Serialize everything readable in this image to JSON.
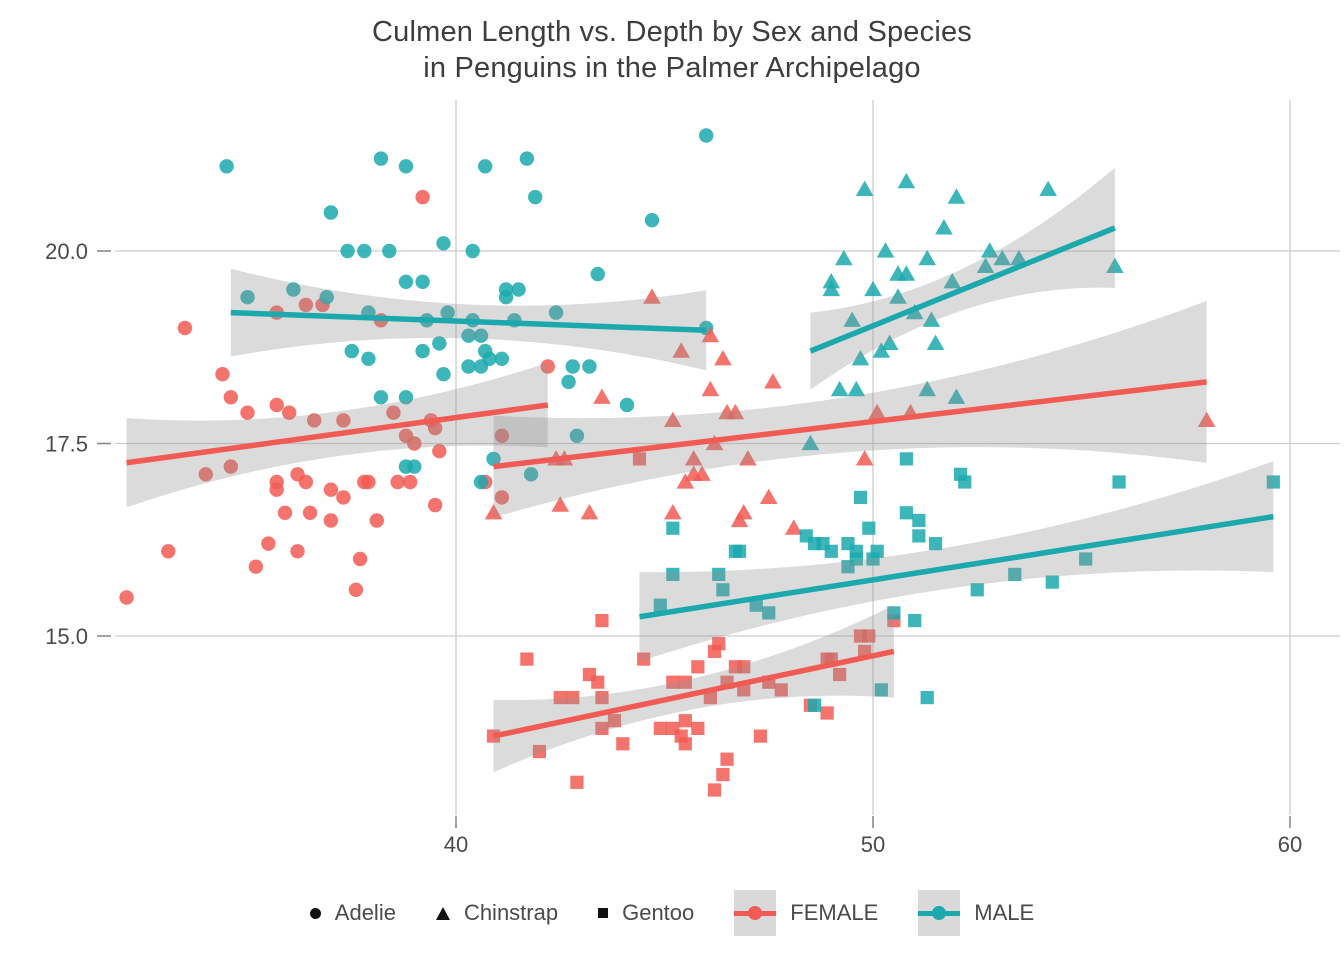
{
  "title": {
    "line1": "Culmen Length vs. Depth by Sex and Species",
    "line2": "in Penguins in the Palmer Archipelago"
  },
  "colors": {
    "female": "#f25b53",
    "male": "#1ba9ae",
    "band": "#8f8f8f",
    "grid": "#cdcdcd",
    "tick": "#8a8a8a",
    "tick_text": "#4a4a4a",
    "title_text": "#3d3d3d",
    "legend_key_bg": "#d9d9d9",
    "legend_marker": "#111111"
  },
  "axes": {
    "x_ticks": [
      {
        "value": 40,
        "label": "40"
      },
      {
        "value": 50,
        "label": "50"
      },
      {
        "value": 60,
        "label": "60"
      }
    ],
    "y_ticks": [
      {
        "value": 20.0,
        "label": "20.0"
      },
      {
        "value": 17.5,
        "label": "17.5"
      },
      {
        "value": 15.0,
        "label": "15.0"
      }
    ],
    "x_domain": [
      31.8,
      61.2
    ],
    "y_domain": [
      12.68,
      21.96
    ]
  },
  "legend": {
    "species": [
      {
        "label": "Adelie",
        "shape": "circle"
      },
      {
        "label": "Chinstrap",
        "shape": "triangle"
      },
      {
        "label": "Gentoo",
        "shape": "square"
      }
    ],
    "sex": [
      {
        "label": "FEMALE",
        "color": "#f25b53"
      },
      {
        "label": "MALE",
        "color": "#1ba9ae"
      }
    ]
  },
  "chart_data": {
    "type": "scatter",
    "title": "Culmen Length vs. Depth by Sex and Species in Penguins in the Palmer Archipelago",
    "xlabel": "",
    "ylabel": "",
    "xlim": [
      31.8,
      61.2
    ],
    "ylim": [
      12.68,
      21.96
    ],
    "grid": true,
    "legend_position": "bottom",
    "series": [
      {
        "name": "Adelie FEMALE",
        "species": "Adelie",
        "sex": "FEMALE",
        "shape": "circle",
        "color": "#f25b53",
        "points": [
          [
            32.1,
            15.5
          ],
          [
            33.1,
            16.1
          ],
          [
            33.5,
            19.0
          ],
          [
            34.0,
            17.1
          ],
          [
            34.4,
            18.4
          ],
          [
            34.6,
            17.2
          ],
          [
            34.6,
            18.1
          ],
          [
            35.0,
            17.9
          ],
          [
            35.2,
            15.9
          ],
          [
            35.5,
            16.2
          ],
          [
            35.7,
            16.9
          ],
          [
            35.7,
            17.0
          ],
          [
            35.7,
            18.0
          ],
          [
            35.7,
            19.2
          ],
          [
            35.9,
            16.6
          ],
          [
            36.0,
            17.9
          ],
          [
            36.2,
            16.1
          ],
          [
            36.2,
            17.1
          ],
          [
            36.4,
            17.0
          ],
          [
            36.4,
            19.3
          ],
          [
            36.5,
            16.6
          ],
          [
            36.6,
            17.8
          ],
          [
            36.8,
            19.3
          ],
          [
            37.0,
            16.5
          ],
          [
            37.0,
            16.9
          ],
          [
            37.3,
            16.8
          ],
          [
            37.3,
            17.8
          ],
          [
            37.6,
            15.6
          ],
          [
            37.7,
            16.0
          ],
          [
            37.8,
            17.0
          ],
          [
            37.9,
            17.0
          ],
          [
            38.1,
            16.5
          ],
          [
            38.2,
            19.1
          ],
          [
            38.5,
            17.9
          ],
          [
            38.6,
            17.0
          ],
          [
            38.8,
            17.6
          ],
          [
            38.9,
            17.0
          ],
          [
            39.0,
            17.5
          ],
          [
            39.2,
            20.7
          ],
          [
            39.4,
            17.8
          ],
          [
            39.5,
            16.7
          ],
          [
            39.5,
            17.7
          ],
          [
            39.6,
            17.4
          ],
          [
            40.7,
            17.0
          ],
          [
            41.1,
            16.8
          ],
          [
            41.1,
            17.6
          ],
          [
            42.2,
            18.5
          ]
        ],
        "regression": {
          "x1": 32.1,
          "y1": 17.25,
          "x2": 42.2,
          "y2": 18.0
        },
        "band_halfwidth": [
          0.58,
          0.29,
          0.55
        ]
      },
      {
        "name": "Adelie MALE",
        "species": "Adelie",
        "sex": "MALE",
        "shape": "circle",
        "color": "#1ba9ae",
        "points": [
          [
            34.5,
            21.1
          ],
          [
            35.0,
            19.4
          ],
          [
            36.1,
            19.5
          ],
          [
            36.9,
            19.4
          ],
          [
            37.0,
            20.5
          ],
          [
            37.4,
            20.0
          ],
          [
            37.5,
            18.7
          ],
          [
            37.8,
            20.0
          ],
          [
            37.9,
            18.6
          ],
          [
            37.9,
            19.2
          ],
          [
            38.2,
            18.1
          ],
          [
            38.2,
            21.2
          ],
          [
            38.4,
            20.0
          ],
          [
            38.8,
            17.2
          ],
          [
            38.8,
            18.1
          ],
          [
            38.8,
            19.6
          ],
          [
            38.8,
            21.1
          ],
          [
            39.0,
            17.2
          ],
          [
            39.2,
            18.7
          ],
          [
            39.2,
            19.6
          ],
          [
            39.3,
            19.1
          ],
          [
            39.6,
            18.8
          ],
          [
            39.7,
            18.4
          ],
          [
            39.7,
            20.1
          ],
          [
            39.8,
            19.2
          ],
          [
            40.3,
            18.5
          ],
          [
            40.3,
            18.9
          ],
          [
            40.4,
            19.1
          ],
          [
            40.4,
            20.0
          ],
          [
            40.6,
            17.0
          ],
          [
            40.6,
            18.5
          ],
          [
            40.6,
            18.9
          ],
          [
            40.7,
            18.7
          ],
          [
            40.7,
            21.1
          ],
          [
            40.8,
            18.6
          ],
          [
            40.9,
            17.3
          ],
          [
            41.1,
            18.6
          ],
          [
            41.2,
            19.4
          ],
          [
            41.2,
            19.5
          ],
          [
            41.4,
            19.1
          ],
          [
            41.5,
            19.5
          ],
          [
            41.7,
            21.2
          ],
          [
            41.8,
            17.1
          ],
          [
            41.9,
            20.7
          ],
          [
            42.4,
            19.2
          ],
          [
            42.7,
            18.3
          ],
          [
            42.8,
            18.5
          ],
          [
            42.9,
            17.6
          ],
          [
            43.2,
            18.5
          ],
          [
            43.4,
            19.7
          ],
          [
            44.1,
            18.0
          ],
          [
            44.7,
            20.4
          ],
          [
            46.0,
            19.0
          ],
          [
            46.0,
            21.5
          ]
        ],
        "regression": {
          "x1": 34.6,
          "y1": 19.2,
          "x2": 46.0,
          "y2": 18.97
        },
        "band_halfwidth": [
          0.57,
          0.22,
          0.52
        ]
      },
      {
        "name": "Chinstrap FEMALE",
        "species": "Chinstrap",
        "sex": "FEMALE",
        "shape": "triangle",
        "color": "#f25b53",
        "points": [
          [
            40.9,
            16.6
          ],
          [
            42.4,
            17.3
          ],
          [
            42.5,
            16.7
          ],
          [
            42.6,
            17.3
          ],
          [
            43.2,
            16.6
          ],
          [
            43.5,
            18.1
          ],
          [
            44.7,
            19.4
          ],
          [
            45.2,
            16.6
          ],
          [
            45.2,
            17.8
          ],
          [
            45.4,
            18.7
          ],
          [
            45.5,
            17.0
          ],
          [
            45.7,
            17.1
          ],
          [
            45.7,
            17.3
          ],
          [
            45.9,
            17.1
          ],
          [
            46.1,
            18.2
          ],
          [
            46.1,
            18.9
          ],
          [
            46.2,
            17.5
          ],
          [
            46.4,
            18.6
          ],
          [
            46.5,
            17.9
          ],
          [
            46.7,
            17.9
          ],
          [
            46.8,
            16.5
          ],
          [
            46.9,
            16.6
          ],
          [
            47.0,
            17.3
          ],
          [
            47.5,
            16.8
          ],
          [
            47.6,
            18.3
          ],
          [
            48.1,
            16.4
          ],
          [
            49.8,
            17.3
          ],
          [
            50.1,
            17.9
          ],
          [
            50.9,
            17.9
          ],
          [
            58.0,
            17.8
          ]
        ],
        "regression": {
          "x1": 40.9,
          "y1": 17.2,
          "x2": 58.0,
          "y2": 18.3
        },
        "band_halfwidth": [
          0.66,
          0.36,
          1.05
        ]
      },
      {
        "name": "Chinstrap MALE",
        "species": "Chinstrap",
        "sex": "MALE",
        "shape": "triangle",
        "color": "#1ba9ae",
        "points": [
          [
            48.5,
            17.5
          ],
          [
            49.0,
            19.5
          ],
          [
            49.0,
            19.6
          ],
          [
            49.2,
            18.2
          ],
          [
            49.3,
            19.9
          ],
          [
            49.5,
            19.1
          ],
          [
            49.6,
            18.2
          ],
          [
            49.7,
            18.6
          ],
          [
            49.8,
            20.8
          ],
          [
            50.0,
            19.5
          ],
          [
            50.2,
            18.7
          ],
          [
            50.3,
            20.0
          ],
          [
            50.4,
            18.8
          ],
          [
            50.6,
            19.4
          ],
          [
            50.6,
            19.7
          ],
          [
            50.8,
            19.7
          ],
          [
            50.8,
            20.9
          ],
          [
            51.0,
            19.2
          ],
          [
            51.3,
            18.2
          ],
          [
            51.3,
            19.9
          ],
          [
            51.4,
            19.1
          ],
          [
            51.5,
            18.8
          ],
          [
            51.7,
            20.3
          ],
          [
            51.9,
            19.6
          ],
          [
            52.0,
            18.1
          ],
          [
            52.0,
            20.7
          ],
          [
            52.7,
            19.8
          ],
          [
            52.8,
            20.0
          ],
          [
            53.1,
            19.9
          ],
          [
            53.5,
            19.9
          ],
          [
            54.2,
            20.8
          ],
          [
            55.8,
            19.8
          ]
        ],
        "regression": {
          "x1": 48.5,
          "y1": 18.7,
          "x2": 55.8,
          "y2": 20.3
        },
        "band_halfwidth": [
          0.5,
          0.27,
          0.78
        ]
      },
      {
        "name": "Gentoo FEMALE",
        "species": "Gentoo",
        "sex": "FEMALE",
        "shape": "square",
        "color": "#f25b53",
        "points": [
          [
            40.9,
            13.7
          ],
          [
            41.7,
            14.7
          ],
          [
            42.0,
            13.5
          ],
          [
            42.5,
            14.2
          ],
          [
            42.8,
            14.2
          ],
          [
            42.9,
            13.1
          ],
          [
            43.2,
            14.5
          ],
          [
            43.4,
            14.4
          ],
          [
            43.5,
            13.8
          ],
          [
            43.5,
            14.2
          ],
          [
            43.5,
            15.2
          ],
          [
            43.8,
            13.9
          ],
          [
            44.0,
            13.6
          ],
          [
            44.4,
            17.3
          ],
          [
            44.5,
            14.7
          ],
          [
            44.9,
            13.8
          ],
          [
            45.2,
            13.8
          ],
          [
            45.2,
            14.4
          ],
          [
            45.4,
            13.7
          ],
          [
            45.5,
            13.6
          ],
          [
            45.5,
            13.9
          ],
          [
            45.5,
            14.4
          ],
          [
            45.8,
            13.8
          ],
          [
            45.8,
            14.6
          ],
          [
            46.1,
            14.2
          ],
          [
            46.2,
            13.0
          ],
          [
            46.2,
            14.8
          ],
          [
            46.3,
            14.9
          ],
          [
            46.4,
            13.2
          ],
          [
            46.5,
            13.4
          ],
          [
            46.5,
            14.4
          ],
          [
            46.7,
            14.6
          ],
          [
            46.9,
            14.3
          ],
          [
            46.9,
            14.6
          ],
          [
            47.3,
            13.7
          ],
          [
            47.5,
            14.4
          ],
          [
            47.8,
            14.3
          ],
          [
            48.5,
            14.1
          ],
          [
            48.9,
            14.0
          ],
          [
            48.9,
            14.7
          ],
          [
            49.0,
            14.7
          ],
          [
            49.2,
            14.5
          ],
          [
            49.7,
            15.0
          ],
          [
            49.8,
            14.8
          ],
          [
            49.9,
            15.0
          ],
          [
            50.5,
            15.2
          ]
        ],
        "regression": {
          "x1": 40.9,
          "y1": 13.7,
          "x2": 50.5,
          "y2": 14.8
        },
        "band_halfwidth": [
          0.47,
          0.2,
          0.6
        ]
      },
      {
        "name": "Gentoo MALE",
        "species": "Gentoo",
        "sex": "MALE",
        "shape": "square",
        "color": "#1ba9ae",
        "points": [
          [
            44.9,
            15.4
          ],
          [
            45.2,
            15.8
          ],
          [
            45.2,
            16.4
          ],
          [
            46.3,
            15.8
          ],
          [
            46.4,
            15.6
          ],
          [
            46.7,
            16.1
          ],
          [
            46.8,
            16.1
          ],
          [
            47.2,
            15.4
          ],
          [
            47.5,
            15.3
          ],
          [
            48.4,
            16.3
          ],
          [
            48.6,
            14.1
          ],
          [
            48.6,
            16.2
          ],
          [
            48.8,
            16.2
          ],
          [
            49.0,
            16.1
          ],
          [
            49.4,
            15.9
          ],
          [
            49.4,
            16.2
          ],
          [
            49.6,
            16.0
          ],
          [
            49.6,
            16.1
          ],
          [
            49.7,
            16.8
          ],
          [
            49.9,
            16.4
          ],
          [
            50.0,
            16.0
          ],
          [
            50.1,
            16.1
          ],
          [
            50.2,
            14.3
          ],
          [
            50.5,
            15.3
          ],
          [
            50.8,
            16.6
          ],
          [
            50.8,
            17.3
          ],
          [
            51.0,
            15.2
          ],
          [
            51.1,
            16.3
          ],
          [
            51.1,
            16.5
          ],
          [
            51.3,
            14.2
          ],
          [
            51.5,
            16.2
          ],
          [
            52.1,
            17.1
          ],
          [
            52.2,
            17.0
          ],
          [
            52.5,
            15.6
          ],
          [
            53.4,
            15.8
          ],
          [
            54.3,
            15.7
          ],
          [
            55.1,
            16.0
          ],
          [
            55.9,
            17.0
          ],
          [
            59.6,
            17.0
          ]
        ],
        "regression": {
          "x1": 44.4,
          "y1": 15.25,
          "x2": 59.6,
          "y2": 16.55
        },
        "band_halfwidth": [
          0.58,
          0.27,
          0.72
        ]
      }
    ]
  }
}
